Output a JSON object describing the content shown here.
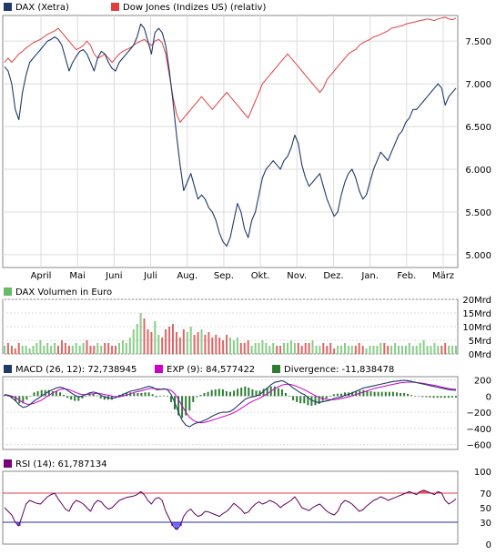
{
  "colors": {
    "frame": "#888888",
    "grid": "#dcdcdc",
    "dax": "#1f3a6a",
    "dow": "#e04040",
    "vol_up": "#88cc88",
    "vol_down": "#dd6666",
    "macd": "#1f3a6a",
    "exp": "#cc00cc",
    "divergence": "#2e7d32",
    "rsi_line": "#600060",
    "rsi_ref": "#e04040",
    "rsi_low": "#2a2aa0",
    "rsi_fill_low": "#6d6dff",
    "rsi_fill_high": "#ff5555",
    "swatch_vol": "#66bb66",
    "swatch_rsi": "#7a007a"
  },
  "chart_data": [
    {
      "type": "line",
      "legend": [
        {
          "label": "DAX (Xetra)",
          "color_key": "dax"
        },
        {
          "label": "Dow Jones (Indizes US) (relativ)",
          "color_key": "dow"
        }
      ],
      "x_tick_labels": [
        "April",
        "Mai",
        "Juni",
        "Juli",
        "Aug.",
        "Sep.",
        "Okt.",
        "Nov.",
        "Dez.",
        "Jan.",
        "Feb.",
        "März"
      ],
      "y_tick_labels": [
        "5.000",
        "5.500",
        "6.000",
        "6.500",
        "7.000",
        "7.500"
      ],
      "y_ticks": [
        5000,
        5500,
        6000,
        6500,
        7000,
        7500
      ],
      "ylim": [
        4850,
        7800
      ],
      "grid": true,
      "series": [
        {
          "name": "DAX (Xetra)",
          "color_key": "dax",
          "values": [
            7200,
            7150,
            7000,
            6700,
            6580,
            6900,
            7100,
            7250,
            7300,
            7350,
            7400,
            7450,
            7500,
            7520,
            7550,
            7520,
            7450,
            7300,
            7150,
            7250,
            7320,
            7380,
            7400,
            7350,
            7250,
            7150,
            7300,
            7380,
            7350,
            7250,
            7180,
            7150,
            7250,
            7300,
            7350,
            7400,
            7450,
            7550,
            7700,
            7650,
            7500,
            7350,
            7600,
            7650,
            7600,
            7450,
            7150,
            6800,
            6400,
            6050,
            5750,
            5850,
            5950,
            5800,
            5650,
            5700,
            5650,
            5550,
            5500,
            5400,
            5250,
            5150,
            5100,
            5200,
            5400,
            5600,
            5500,
            5300,
            5200,
            5400,
            5500,
            5700,
            5900,
            6000,
            6050,
            6100,
            6050,
            6000,
            6100,
            6150,
            6250,
            6400,
            6300,
            6050,
            5900,
            5800,
            5850,
            5900,
            5950,
            5800,
            5650,
            5550,
            5450,
            5500,
            5700,
            5850,
            5950,
            6000,
            5900,
            5750,
            5650,
            5700,
            5850,
            6000,
            6100,
            6200,
            6150,
            6100,
            6200,
            6300,
            6400,
            6450,
            6550,
            6600,
            6700,
            6700,
            6750,
            6800,
            6850,
            6900,
            6950,
            7000,
            6950,
            6750,
            6850,
            6900,
            6950
          ]
        },
        {
          "name": "Dow Jones (Indizes US) (relativ)",
          "color_key": "dow",
          "values": [
            7250,
            7300,
            7250,
            7300,
            7350,
            7380,
            7420,
            7450,
            7480,
            7500,
            7520,
            7550,
            7580,
            7600,
            7620,
            7650,
            7600,
            7550,
            7500,
            7450,
            7400,
            7420,
            7450,
            7500,
            7450,
            7350,
            7300,
            7320,
            7350,
            7300,
            7250,
            7300,
            7350,
            7380,
            7400,
            7420,
            7450,
            7480,
            7500,
            7520,
            7480,
            7450,
            7500,
            7520,
            7480,
            7350,
            7100,
            6850,
            6650,
            6550,
            6600,
            6650,
            6700,
            6750,
            6800,
            6850,
            6800,
            6750,
            6700,
            6750,
            6800,
            6850,
            6900,
            6850,
            6800,
            6750,
            6700,
            6650,
            6600,
            6700,
            6800,
            6900,
            7000,
            7050,
            7100,
            7150,
            7200,
            7250,
            7300,
            7350,
            7300,
            7250,
            7200,
            7150,
            7100,
            7050,
            7000,
            6950,
            6900,
            6950,
            7050,
            7100,
            7150,
            7200,
            7250,
            7300,
            7350,
            7380,
            7400,
            7450,
            7480,
            7500,
            7520,
            7550,
            7560,
            7580,
            7600,
            7620,
            7650,
            7660,
            7670,
            7680,
            7700,
            7710,
            7720,
            7730,
            7740,
            7750,
            7760,
            7750,
            7740,
            7760,
            7770,
            7780,
            7760,
            7750,
            7770
          ]
        }
      ]
    },
    {
      "type": "bar",
      "legend": [
        {
          "label": "DAX Volumen in Euro",
          "color_key": "swatch_vol"
        }
      ],
      "y_tick_labels": [
        "0Mrd",
        "5Mrd",
        "10Mrd",
        "15Mrd",
        "20Mrd"
      ],
      "y_ticks": [
        0,
        5,
        10,
        15,
        20
      ],
      "ylim": [
        0,
        20
      ],
      "series": [
        {
          "name": "DAX Volumen in Euro",
          "color_key": "vol_up",
          "values": [
            3,
            4,
            3,
            2,
            4,
            3,
            3,
            2,
            3,
            4,
            5,
            3,
            4,
            3,
            4,
            3,
            5,
            4,
            3,
            3,
            4,
            3,
            4,
            5,
            3,
            3,
            4,
            3,
            4,
            4,
            3,
            3,
            4,
            5,
            4,
            6,
            9,
            11,
            15,
            13,
            9,
            8,
            12,
            7,
            6,
            9,
            10,
            11,
            8,
            6,
            9,
            8,
            10,
            7,
            8,
            9,
            7,
            8,
            6,
            7,
            6,
            5,
            7,
            6,
            5,
            6,
            4,
            4,
            5,
            3,
            4,
            4,
            5,
            4,
            3,
            4,
            3,
            3,
            4,
            4,
            5,
            4,
            4,
            3,
            4,
            4,
            5,
            3,
            3,
            4,
            3,
            4,
            2,
            3,
            3,
            4,
            3,
            3,
            3,
            4,
            3,
            2,
            3,
            3,
            3,
            4,
            4,
            3,
            3,
            4,
            3,
            3,
            3,
            4,
            3,
            3,
            4,
            5,
            3,
            3,
            4,
            3,
            3,
            4,
            3,
            3,
            3
          ]
        }
      ]
    },
    {
      "type": "line",
      "legend": [
        {
          "label": "MACD (26, 12): 72,738945",
          "color_key": "macd"
        },
        {
          "label": "EXP (9): 84,577422",
          "color_key": "exp"
        },
        {
          "label": "Divergence: -11,838478",
          "color_key": "divergence"
        }
      ],
      "y_tick_labels": [
        "−600",
        "−400",
        "−200",
        "0",
        "200"
      ],
      "y_ticks": [
        -600,
        -400,
        -200,
        0,
        200
      ],
      "ylim": [
        -660,
        240
      ],
      "series": [
        {
          "name": "MACD (26, 12): 72,738945",
          "color_key": "macd",
          "values": [
            20,
            10,
            -20,
            -60,
            -110,
            -140,
            -130,
            -100,
            -60,
            -30,
            0,
            30,
            60,
            80,
            100,
            110,
            100,
            70,
            40,
            10,
            -10,
            0,
            20,
            40,
            50,
            40,
            10,
            -10,
            -20,
            -30,
            -20,
            0,
            20,
            40,
            60,
            70,
            80,
            90,
            110,
            120,
            110,
            80,
            80,
            90,
            80,
            20,
            -80,
            -200,
            -300,
            -360,
            -380,
            -350,
            -330,
            -320,
            -300,
            -280,
            -250,
            -230,
            -210,
            -200,
            -200,
            -190,
            -160,
            -120,
            -80,
            -40,
            -20,
            -10,
            0,
            20,
            60,
            100,
            140,
            170,
            180,
            190,
            170,
            140,
            100,
            70,
            40,
            20,
            -20,
            -50,
            -70,
            -80,
            -70,
            -60,
            -50,
            -30,
            -20,
            -10,
            10,
            20,
            40,
            60,
            80,
            100,
            110,
            120,
            130,
            140,
            150,
            160,
            170,
            180,
            185,
            190,
            195,
            190,
            180,
            170,
            160,
            150,
            140,
            130,
            120,
            110,
            100,
            90,
            80,
            75,
            72
          ]
        },
        {
          "name": "EXP (9): 84,577422",
          "color_key": "exp",
          "values": [
            10,
            10,
            0,
            -20,
            -50,
            -80,
            -100,
            -100,
            -90,
            -70,
            -50,
            -20,
            10,
            40,
            60,
            80,
            90,
            85,
            70,
            50,
            30,
            20,
            20,
            25,
            30,
            35,
            30,
            20,
            10,
            0,
            -10,
            -10,
            0,
            10,
            30,
            45,
            55,
            65,
            80,
            90,
            95,
            90,
            85,
            85,
            85,
            70,
            30,
            -40,
            -120,
            -200,
            -260,
            -300,
            -320,
            -330,
            -325,
            -315,
            -300,
            -285,
            -270,
            -255,
            -240,
            -225,
            -205,
            -180,
            -150,
            -120,
            -90,
            -65,
            -45,
            -25,
            0,
            30,
            60,
            90,
            115,
            135,
            145,
            145,
            135,
            120,
            100,
            80,
            55,
            30,
            5,
            -15,
            -30,
            -40,
            -45,
            -45,
            -40,
            -30,
            -20,
            -10,
            5,
            20,
            35,
            50,
            65,
            80,
            95,
            105,
            115,
            125,
            135,
            145,
            155,
            165,
            170,
            172,
            172,
            168,
            164,
            158,
            150,
            142,
            134,
            124,
            114,
            104,
            94,
            88,
            84
          ]
        }
      ]
    },
    {
      "type": "line",
      "legend": [
        {
          "label": "RSI (14): 61,787134",
          "color_key": "swatch_rsi"
        }
      ],
      "y_tick_labels": [
        "0",
        "30",
        "50",
        "70",
        "100"
      ],
      "y_ticks": [
        0,
        30,
        50,
        70,
        100
      ],
      "ylim": [
        0,
        100
      ],
      "series": [
        {
          "name": "RSI (14): 61,787134",
          "color_key": "rsi_line",
          "values": [
            50,
            45,
            40,
            30,
            25,
            40,
            55,
            60,
            58,
            56,
            55,
            60,
            65,
            68,
            70,
            62,
            55,
            48,
            45,
            55,
            60,
            58,
            55,
            50,
            45,
            55,
            60,
            58,
            52,
            48,
            50,
            55,
            60,
            62,
            64,
            65,
            66,
            68,
            72,
            68,
            60,
            55,
            62,
            64,
            60,
            45,
            35,
            25,
            20,
            25,
            38,
            45,
            48,
            42,
            38,
            40,
            45,
            44,
            42,
            40,
            38,
            42,
            45,
            50,
            56,
            52,
            48,
            42,
            44,
            50,
            55,
            58,
            55,
            57,
            60,
            58,
            55,
            50,
            54,
            57,
            60,
            65,
            58,
            50,
            48,
            46,
            50,
            53,
            55,
            50,
            45,
            42,
            40,
            45,
            55,
            60,
            58,
            55,
            50,
            45,
            47,
            52,
            56,
            60,
            62,
            65,
            63,
            60,
            62,
            64,
            66,
            68,
            70,
            72,
            70,
            68,
            72,
            74,
            72,
            70,
            68,
            72,
            70,
            60,
            55,
            58,
            62
          ]
        }
      ],
      "reference_lines": [
        70,
        30
      ]
    }
  ]
}
